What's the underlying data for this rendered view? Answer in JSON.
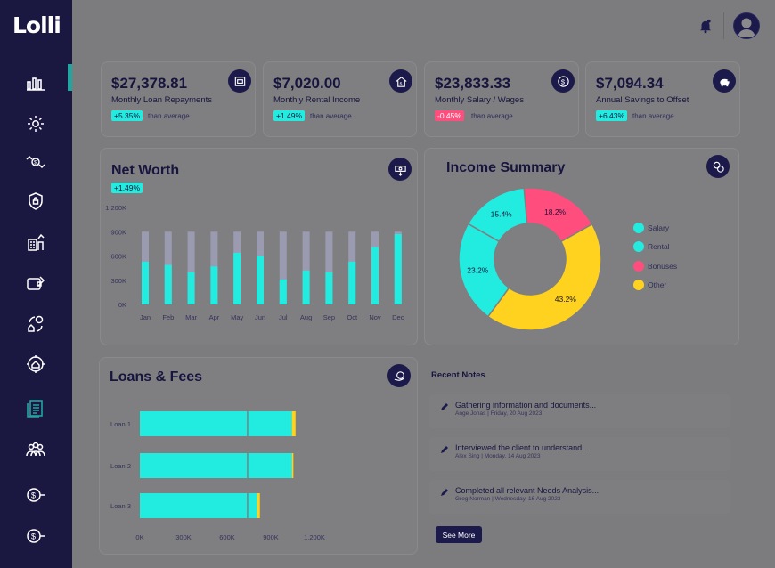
{
  "app": {
    "logo_text": "Lolli"
  },
  "sidebar": {
    "items": [
      {
        "icon": "bar-chart-icon"
      },
      {
        "icon": "gear-icon"
      },
      {
        "icon": "money-transfer-icon"
      },
      {
        "icon": "shield-lock-icon"
      },
      {
        "icon": "building-chart-icon"
      },
      {
        "icon": "wallet-edit-icon"
      },
      {
        "icon": "cycle-home-dollar-icon"
      },
      {
        "icon": "home-target-icon"
      },
      {
        "icon": "document-list-icon"
      },
      {
        "icon": "people-group-icon"
      },
      {
        "icon": "dollar-coin-icon"
      },
      {
        "icon": "dollar-coin-2-icon"
      }
    ]
  },
  "stats": [
    {
      "value": "$27,378.81",
      "label": "Monthly Loan Repayments",
      "badge": "+5.35%",
      "trend": "up",
      "sub": "than average",
      "icon": "bank-icon"
    },
    {
      "value": "$7,020.00",
      "label": "Monthly Rental Income",
      "badge": "+1.49%",
      "trend": "up",
      "sub": "than average",
      "icon": "house-dollar-icon"
    },
    {
      "value": "$23,833.33",
      "label": "Monthly Salary / Wages",
      "badge": "-0.45%",
      "trend": "down",
      "sub": "than average",
      "icon": "dollar-coin-icon"
    },
    {
      "value": "$7,094.34",
      "label": "Annual Savings to Offset",
      "badge": "+6.43%",
      "trend": "up",
      "sub": "than average",
      "icon": "piggy-bank-icon"
    }
  ],
  "net_worth": {
    "title": "Net Worth",
    "badge": "+1.49%",
    "icon": "cash-stack-icon"
  },
  "income_summary": {
    "title": "Income Summary",
    "icon": "coins-exchange-icon"
  },
  "loans_fees": {
    "title": "Loans & Fees",
    "icon": "coin-hand-icon"
  },
  "recent_notes": {
    "title": "Recent Notes",
    "items": [
      {
        "title": "Gathering information and documents...",
        "meta": "Ange Jonas | Friday, 20 Aug 2023"
      },
      {
        "title": "Interviewed the client to understand...",
        "meta": "Alex Sing | Monday, 14 Aug 2023"
      },
      {
        "title": "Completed all relevant Needs Analysis...",
        "meta": "Greg Norman | Wednesday, 16 Aug 2023"
      }
    ],
    "see_more_label": "See More"
  },
  "colors": {
    "sidebar": "#1a1740",
    "teal": "#22ece0",
    "pink": "#ff4e7e",
    "yellow": "#ffd21f",
    "navy": "#1c1a4a",
    "track": "#9a9ab0"
  },
  "chart_data": [
    {
      "type": "bar",
      "title": "Net Worth",
      "categories": [
        "Jan",
        "Feb",
        "Mar",
        "Apr",
        "May",
        "Jun",
        "Jul",
        "Aug",
        "Sep",
        "Oct",
        "Nov",
        "Dec"
      ],
      "y_ticks": [
        "1,200K",
        "900K",
        "600K",
        "300K",
        "0K"
      ],
      "ylim": [
        0,
        1200000
      ],
      "max_track": 900000,
      "series": [
        {
          "values": [
            530000,
            490000,
            400000,
            470000,
            640000,
            600000,
            310000,
            420000,
            400000,
            530000,
            710000,
            870000
          ]
        }
      ],
      "grid": false
    },
    {
      "type": "pie",
      "title": "Income Summary",
      "donut": true,
      "slices": [
        {
          "label": "Bonuses",
          "value": 18.2,
          "display": "18.2%",
          "color": "#ff4e7e"
        },
        {
          "label": "Other",
          "value": 43.2,
          "display": "43.2%",
          "color": "#ffd21f"
        },
        {
          "label": "Salary",
          "value": 23.2,
          "display": "23.2%",
          "color": "#22ece0"
        },
        {
          "label": "Rental",
          "value": 15.4,
          "display": "15.4%",
          "color": "#22ece0"
        }
      ],
      "legend": [
        "Salary",
        "Rental",
        "Bonuses",
        "Other"
      ],
      "legend_colors": [
        "#22ece0",
        "#22ece0",
        "#ff4e7e",
        "#ffd21f"
      ],
      "legend_placement": "right"
    },
    {
      "type": "bar",
      "orientation": "horizontal",
      "stacked": true,
      "title": "Loans & Fees",
      "categories": [
        "Loan 1",
        "Loan 2",
        "Loan 3"
      ],
      "x_ticks": [
        "0K",
        "300K",
        "600K",
        "900K",
        "1,200K"
      ],
      "xlim": [
        0,
        1200000
      ],
      "series": [
        {
          "color": "#22ece0",
          "values": [
            745000,
            745000,
            745000
          ]
        },
        {
          "color": "#22ece0",
          "values": [
            300000,
            300000,
            60000
          ]
        },
        {
          "color": "#ffd21f",
          "values": [
            25000,
            10000,
            20000
          ]
        }
      ]
    }
  ]
}
